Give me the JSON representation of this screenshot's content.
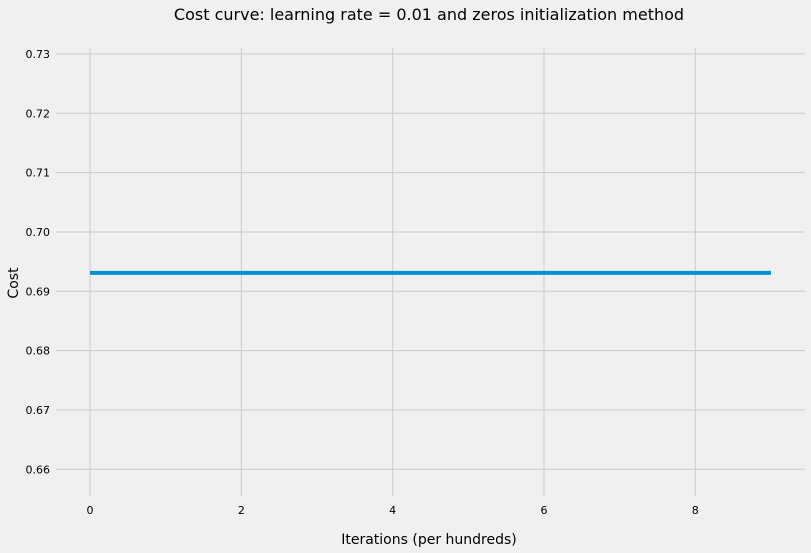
{
  "chart_data": {
    "type": "line",
    "title": "Cost curve: learning rate = 0.01 and zeros initialization method",
    "xlabel": "Iterations (per hundreds)",
    "ylabel": "Cost",
    "xlim": [
      -0.45,
      9.45
    ],
    "ylim": [
      0.6555,
      0.731
    ],
    "xticks": [
      0,
      2,
      4,
      6,
      8
    ],
    "xtick_labels": [
      "0",
      "2",
      "4",
      "6",
      "8"
    ],
    "yticks": [
      0.66,
      0.67,
      0.68,
      0.69,
      0.7,
      0.71,
      0.72,
      0.73
    ],
    "ytick_labels": [
      "0.66",
      "0.67",
      "0.68",
      "0.69",
      "0.70",
      "0.71",
      "0.72",
      "0.73"
    ],
    "grid": true,
    "legend": "none",
    "series_color": "#008fd5",
    "series": [
      {
        "x": [
          0,
          1,
          2,
          3,
          4,
          5,
          6,
          7,
          8,
          9
        ],
        "values": [
          0.6931,
          0.6931,
          0.6931,
          0.6931,
          0.6931,
          0.6931,
          0.6931,
          0.6931,
          0.6931,
          0.6931
        ]
      }
    ]
  }
}
